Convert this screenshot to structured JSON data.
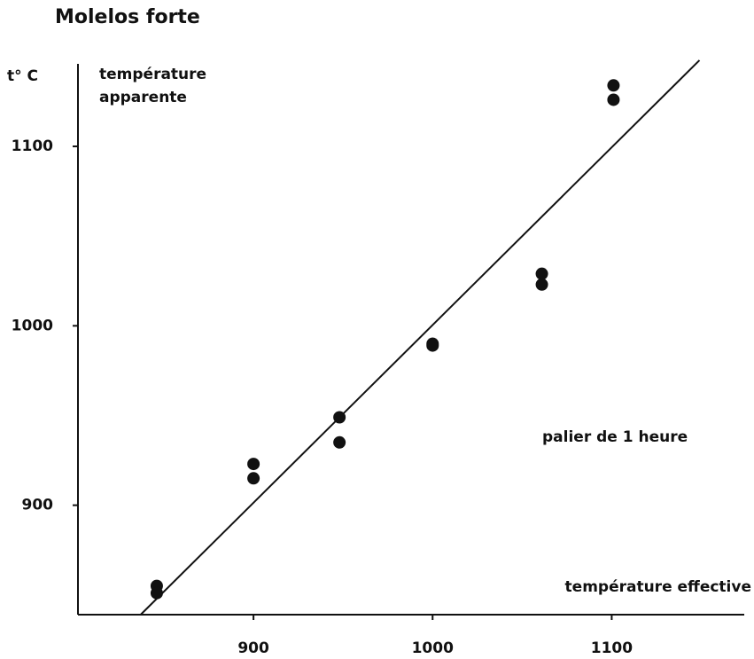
{
  "chart_data": {
    "type": "scatter",
    "title": "Molelos forte",
    "ylabel": "t° C",
    "ylabel_note": [
      "température",
      "apparente"
    ],
    "xlabel": "température effective",
    "annotation": "palier de 1 heure",
    "color": "#111111",
    "series": [
      {
        "x": [
          846,
          846,
          900,
          900,
          948,
          948,
          1000,
          1000,
          1061,
          1061,
          1101,
          1101
        ],
        "values": [
          855,
          851,
          923,
          915,
          949,
          935,
          990,
          989,
          1029,
          1023,
          1134,
          1126
        ]
      }
    ],
    "fit_line": {
      "x": [
        837,
        1149
      ],
      "values": [
        839,
        1148
      ]
    },
    "xlim": [
      802,
      1174
    ],
    "ylim": [
      839,
      1146
    ],
    "xticks": [
      900,
      1000,
      1100
    ],
    "yticks": [
      900,
      1000,
      1100
    ]
  }
}
